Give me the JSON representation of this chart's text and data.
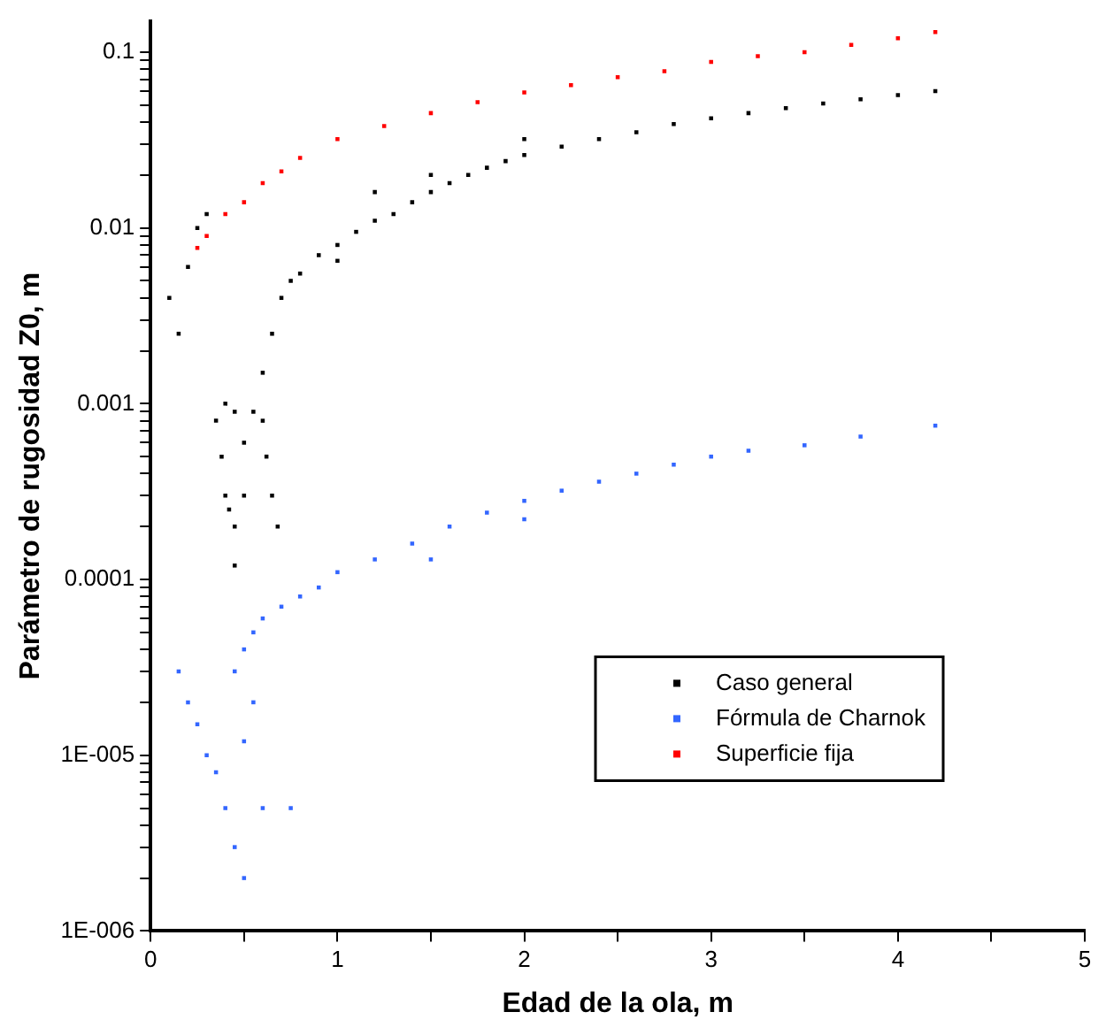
{
  "chart_data": {
    "type": "scatter",
    "xlabel": "Edad de la ola, m",
    "ylabel": "Parámetro de rugosidad Z0, m",
    "log": "y",
    "grid": false,
    "legend": "bottom right",
    "marker": "square",
    "xlim": [
      0,
      5
    ],
    "ylim": [
      1e-06,
      0.15
    ],
    "xticks": [
      0,
      {
        "value": 0.5,
        "label": null
      },
      1,
      {
        "value": 1.5,
        "label": null
      },
      2,
      {
        "value": 2.5,
        "label": null
      },
      3,
      {
        "value": 3.5,
        "label": null
      },
      4,
      {
        "value": 4.5,
        "label": null
      },
      5
    ],
    "yticks": [
      {
        "value": 1e-06,
        "label": "1E-006"
      },
      {
        "value": 2e-06,
        "label": null
      },
      {
        "value": 3e-06,
        "label": null
      },
      {
        "value": 4e-06,
        "label": null
      },
      {
        "value": 5e-06,
        "label": null
      },
      {
        "value": 6e-06,
        "label": null
      },
      {
        "value": 7e-06,
        "label": null
      },
      {
        "value": 8e-06,
        "label": null
      },
      {
        "value": 9e-06,
        "label": null
      },
      {
        "value": 1e-05,
        "label": "1E-005"
      },
      {
        "value": 2e-05,
        "label": null
      },
      {
        "value": 3e-05,
        "label": null
      },
      {
        "value": 4e-05,
        "label": null
      },
      {
        "value": 5e-05,
        "label": null
      },
      {
        "value": 6e-05,
        "label": null
      },
      {
        "value": 7e-05,
        "label": null
      },
      {
        "value": 8e-05,
        "label": null
      },
      {
        "value": 9e-05,
        "label": null
      },
      0.0001,
      {
        "value": 0.0002,
        "label": null
      },
      {
        "value": 0.0003,
        "label": null
      },
      {
        "value": 0.0004,
        "label": null
      },
      {
        "value": 0.0005,
        "label": null
      },
      {
        "value": 0.0006,
        "label": null
      },
      {
        "value": 0.0007,
        "label": null
      },
      {
        "value": 0.0008,
        "label": null
      },
      {
        "value": 0.0009,
        "label": null
      },
      0.001,
      {
        "value": 0.002,
        "label": null
      },
      {
        "value": 0.003,
        "label": null
      },
      {
        "value": 0.004,
        "label": null
      },
      {
        "value": 0.005,
        "label": null
      },
      {
        "value": 0.006,
        "label": null
      },
      {
        "value": 0.007,
        "label": null
      },
      {
        "value": 0.008,
        "label": null
      },
      {
        "value": 0.009,
        "label": null
      },
      0.01,
      {
        "value": 0.02,
        "label": null
      },
      {
        "value": 0.03,
        "label": null
      },
      {
        "value": 0.04,
        "label": null
      },
      {
        "value": 0.05,
        "label": null
      },
      {
        "value": 0.06,
        "label": null
      },
      {
        "value": 0.07,
        "label": null
      },
      {
        "value": 0.08,
        "label": null
      },
      {
        "value": 0.09,
        "label": null
      },
      0.1
    ],
    "series": [
      {
        "name": "Caso general",
        "color": "#000000",
        "x": [
          0.1,
          0.15,
          0.2,
          0.25,
          0.3,
          0.35,
          0.38,
          0.4,
          0.42,
          0.45,
          0.4,
          0.45,
          0.5,
          0.5,
          0.45,
          0.55,
          0.6,
          0.62,
          0.65,
          0.68,
          0.6,
          0.65,
          0.7,
          0.75,
          0.8,
          0.9,
          1.0,
          1.1,
          1.2,
          1.3,
          1.4,
          1.5,
          1.6,
          1.7,
          1.8,
          1.9,
          2.0,
          2.2,
          2.4,
          2.6,
          2.8,
          3.0,
          3.2,
          3.4,
          3.6,
          3.8,
          4.0,
          4.2,
          1.2,
          1.5,
          2.0,
          1.0
        ],
        "values": [
          0.004,
          0.0025,
          0.006,
          0.01,
          0.012,
          0.0008,
          0.0005,
          0.0003,
          0.00025,
          0.0002,
          0.001,
          0.0009,
          0.0006,
          0.0003,
          0.00012,
          0.0009,
          0.0008,
          0.0005,
          0.0003,
          0.0002,
          0.0015,
          0.0025,
          0.004,
          0.005,
          0.0055,
          0.007,
          0.008,
          0.0095,
          0.011,
          0.012,
          0.014,
          0.016,
          0.018,
          0.02,
          0.022,
          0.024,
          0.026,
          0.029,
          0.032,
          0.035,
          0.039,
          0.042,
          0.045,
          0.048,
          0.051,
          0.054,
          0.057,
          0.06,
          0.016,
          0.02,
          0.032,
          0.0065
        ]
      },
      {
        "name": "Fórmula de Charnok",
        "color": "#3366ff",
        "x": [
          0.15,
          0.2,
          0.25,
          0.3,
          0.35,
          0.4,
          0.45,
          0.5,
          0.5,
          0.55,
          0.6,
          0.45,
          0.5,
          0.55,
          0.6,
          0.7,
          0.8,
          0.9,
          1.0,
          1.2,
          1.4,
          1.6,
          1.8,
          2.0,
          2.2,
          2.4,
          2.6,
          2.8,
          3.0,
          3.2,
          3.5,
          3.8,
          4.2,
          1.5,
          2.0,
          0.75
        ],
        "values": [
          3e-05,
          2e-05,
          1.5e-05,
          1e-05,
          8e-06,
          5e-06,
          3e-06,
          2e-06,
          1.2e-05,
          2e-05,
          5e-06,
          3e-05,
          4e-05,
          5e-05,
          6e-05,
          7e-05,
          8e-05,
          9e-05,
          0.00011,
          0.00013,
          0.00016,
          0.0002,
          0.00024,
          0.00028,
          0.00032,
          0.00036,
          0.0004,
          0.00045,
          0.0005,
          0.00054,
          0.00058,
          0.00065,
          0.00075,
          0.00013,
          0.00022,
          5e-06
        ]
      },
      {
        "name": "Superficie fija",
        "color": "#ff0000",
        "x": [
          0.25,
          0.3,
          0.4,
          0.5,
          0.6,
          0.7,
          0.8,
          1,
          1.25,
          1.5,
          1.75,
          2,
          2.25,
          2.5,
          2.75,
          3,
          3.25,
          3.5,
          3.75,
          4,
          4.2
        ],
        "values": [
          0.0077,
          0.009,
          0.012,
          0.014,
          0.018,
          0.021,
          0.025,
          0.032,
          0.038,
          0.045,
          0.052,
          0.059,
          0.065,
          0.072,
          0.078,
          0.088,
          0.095,
          0.1,
          0.11,
          0.12,
          0.13
        ]
      }
    ]
  }
}
